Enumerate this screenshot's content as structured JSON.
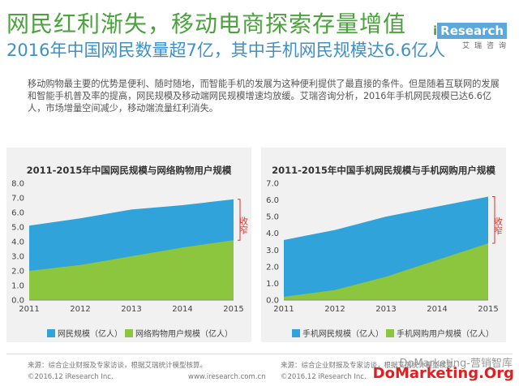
{
  "header": {
    "title": "网民红利渐失，移动电商探索存量增值",
    "subtitle": "2016年中国网民数量超7亿，其中手机网民规模达6.6亿人",
    "paragraph": "移动购物最主要的优势是便利、随时随地，而智能手机的发展为这种便利提供了最直接的条件。但是随着互联网的发展和智能手机普及率的提高，网民规模及移动端网民规模增速均放缓。艾瑞咨询分析，2016年手机网民规模已达6.6亿人，市场增量空间减少，移动端流量红利消失。"
  },
  "logo": {
    "i": "i",
    "brand": "Research",
    "sub": "艾瑞咨询"
  },
  "colors": {
    "green": "#8cc63e",
    "blue": "#2fa3da",
    "annotation": "#e0302a",
    "title_green": "#4aa33c",
    "title_blue": "#3d90c8"
  },
  "annotation_text": "收窄",
  "chart_data": [
    {
      "type": "area",
      "title": "2011-2015年中国网民规模与网络购物用户规模",
      "x": [
        "2011",
        "2012",
        "2013",
        "2014",
        "2015"
      ],
      "ylim": [
        0,
        8.0
      ],
      "yticks": [
        "0.0",
        "1.0",
        "2.0",
        "3.0",
        "4.0",
        "5.0",
        "6.0",
        "7.0",
        "8.0"
      ],
      "series": [
        {
          "name": "网民规模（亿人）",
          "values": [
            5.1,
            5.6,
            6.2,
            6.5,
            6.9
          ],
          "color": "#2fa3da"
        },
        {
          "name": "网络购物用户规模（亿人）",
          "values": [
            2.0,
            2.4,
            3.0,
            3.6,
            4.1
          ],
          "color": "#8cc63e"
        }
      ],
      "annotation": "收窄",
      "grid": false,
      "legend": "bottom",
      "source": "来源：综合企业财报及专家访谈，根据艾瑞统计模型核算。",
      "copyright": "©2016.12 iResearch Inc.",
      "website": "www.iresearch.com.cn"
    },
    {
      "type": "area",
      "title": "2011-2015年中国手机网民规模与手机网购用户规模",
      "x": [
        "2011",
        "2012",
        "2013",
        "2014",
        "2015"
      ],
      "ylim": [
        0,
        7.0
      ],
      "yticks": [
        "0.0",
        "1.0",
        "2.0",
        "3.0",
        "4.0",
        "5.0",
        "6.0",
        "7.0"
      ],
      "series": [
        {
          "name": "手机网民规模（亿人）",
          "values": [
            3.6,
            4.2,
            5.0,
            5.6,
            6.2
          ],
          "color": "#2fa3da"
        },
        {
          "name": "手机网购用户规模（亿人）",
          "values": [
            0.2,
            0.6,
            1.4,
            2.4,
            3.4
          ],
          "color": "#8cc63e"
        }
      ],
      "annotation": "收窄",
      "grid": false,
      "legend": "bottom",
      "source": "来源：综合企业财报及专家访谈，根据艾瑞统计模型核算。",
      "copyright": "©2016.12 iResearch Inc."
    }
  ],
  "watermark": {
    "line1": "DoMarketing-营销智库",
    "line2": "DoMarketing.Org"
  }
}
